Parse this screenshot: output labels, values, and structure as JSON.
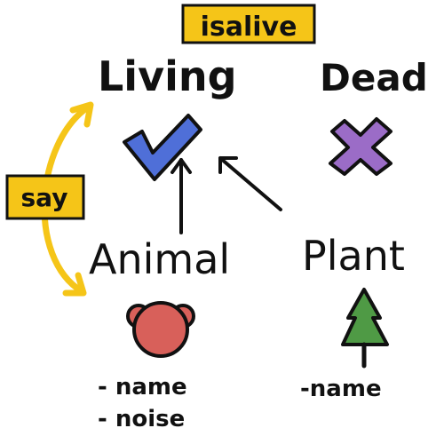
{
  "labels": {
    "isalive": "isalive",
    "living": "Living",
    "dead": "Dead",
    "say": "say",
    "animal": "Animal",
    "plant": "Plant"
  },
  "animal_attributes": [
    "- name",
    "- noise"
  ],
  "plant_attributes": [
    "-name"
  ],
  "icons": {
    "living": "check-mark-icon",
    "dead": "cross-icon",
    "animal": "bear-head-icon",
    "plant": "tree-icon"
  },
  "colors": {
    "highlight": "#f5c518",
    "check": "#4f6fd8",
    "cross": "#9b6cc7",
    "bear": "#d8605a",
    "tree": "#4f9a45",
    "ink": "#111111"
  }
}
